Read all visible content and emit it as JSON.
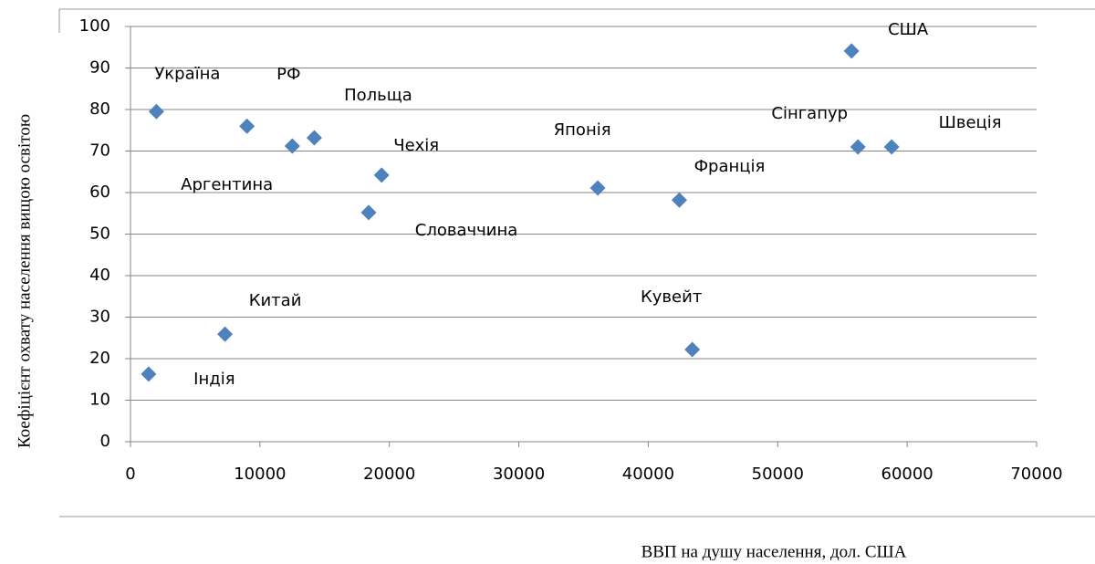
{
  "chart_data": {
    "type": "scatter",
    "x_label": "ВВП на душу населення, дол. США",
    "y_label": "Коефіцієнт охвату населення вищою освітою",
    "labels": [
      "Україна",
      "Аргентина",
      "РФ",
      "Польща",
      "Чехія",
      "Словаччина",
      "Японія",
      "Франція",
      "США",
      "Сінгапур",
      "Швеція",
      "Кувейт",
      "Китай",
      "Індія"
    ],
    "x": [
      2000,
      9000,
      12500,
      14200,
      19400,
      18400,
      36100,
      42400,
      55700,
      56200,
      58800,
      43400,
      7300,
      1400
    ],
    "values": [
      79.5,
      76,
      71.2,
      73.2,
      64.2,
      55.2,
      61.1,
      58.2,
      94.1,
      71,
      71,
      22.2,
      25.9,
      16.3
    ],
    "color": "#4f81bd",
    "xlim": [
      0,
      70000
    ],
    "xticks": [
      0,
      10000,
      20000,
      30000,
      40000,
      50000,
      60000,
      70000
    ],
    "ylim": [
      0,
      100
    ],
    "yticks": [
      0,
      10,
      20,
      30,
      40,
      50,
      60,
      70,
      80,
      90,
      100
    ],
    "grid": true
  }
}
